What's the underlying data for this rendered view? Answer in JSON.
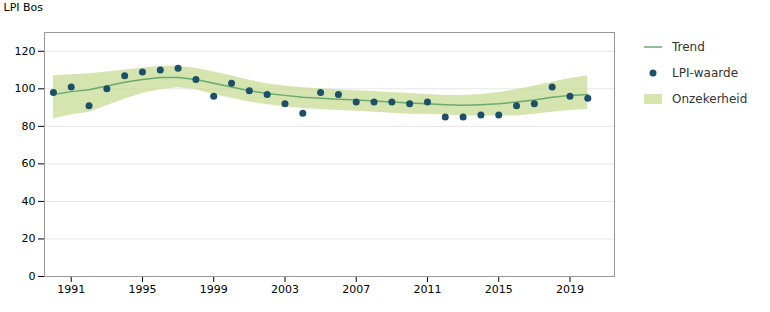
{
  "chart_data": {
    "type": "line",
    "y_label": "LPI Bos",
    "x": [
      1990,
      1991,
      1992,
      1993,
      1994,
      1995,
      1996,
      1997,
      1998,
      1999,
      2000,
      2001,
      2002,
      2003,
      2004,
      2005,
      2006,
      2007,
      2008,
      2009,
      2010,
      2011,
      2012,
      2013,
      2014,
      2015,
      2016,
      2017,
      2018,
      2019,
      2020
    ],
    "series": [
      {
        "name": "Trend",
        "type": "line",
        "color": "#6aaa6e",
        "values": [
          97,
          98.5,
          99.5,
          101.5,
          103.5,
          105,
          106,
          106,
          105,
          103,
          101,
          99,
          97.5,
          96.5,
          95.5,
          95,
          94.5,
          94,
          93.5,
          93,
          92.5,
          92,
          91.5,
          91.2,
          91.5,
          92,
          93,
          94,
          95.5,
          96.5,
          97
        ]
      },
      {
        "name": "LPI-waarde",
        "type": "scatter",
        "marker": "circle",
        "color": "#1d5068",
        "values": [
          98,
          101,
          91,
          100,
          107,
          109,
          110,
          111,
          105,
          96,
          103,
          99,
          97,
          92,
          87,
          98,
          97,
          93,
          93,
          93,
          92,
          93,
          85,
          85,
          86,
          86,
          91,
          92,
          101,
          96,
          95
        ]
      },
      {
        "name": "Onzekerheid",
        "type": "area",
        "color": "#c8dc96",
        "lower": [
          84,
          86,
          87.5,
          91,
          94.5,
          97.5,
          99.5,
          100.5,
          99.5,
          97,
          95,
          93,
          91.5,
          90.5,
          89.5,
          89,
          88.5,
          88,
          87.5,
          87,
          86.5,
          86.5,
          86,
          85.5,
          85.5,
          85.5,
          85.5,
          86.5,
          87.5,
          88.5,
          89
        ],
        "upper": [
          107,
          107.5,
          108,
          109,
          110,
          111,
          112,
          112,
          111,
          109,
          107,
          104.5,
          102.5,
          101.5,
          100.5,
          100,
          99.5,
          99,
          98.5,
          98,
          97.5,
          97,
          96.5,
          96.5,
          97,
          98,
          99.5,
          101.5,
          103.5,
          105.5,
          107
        ]
      }
    ],
    "xlim": [
      1989.5,
      2021.5
    ],
    "ylim": [
      0,
      130
    ],
    "xticks": [
      1991,
      1995,
      1999,
      2003,
      2007,
      2011,
      2015,
      2019
    ],
    "yticks": [
      0,
      20,
      40,
      60,
      80,
      100,
      120
    ],
    "grid": true,
    "legend": "right"
  }
}
